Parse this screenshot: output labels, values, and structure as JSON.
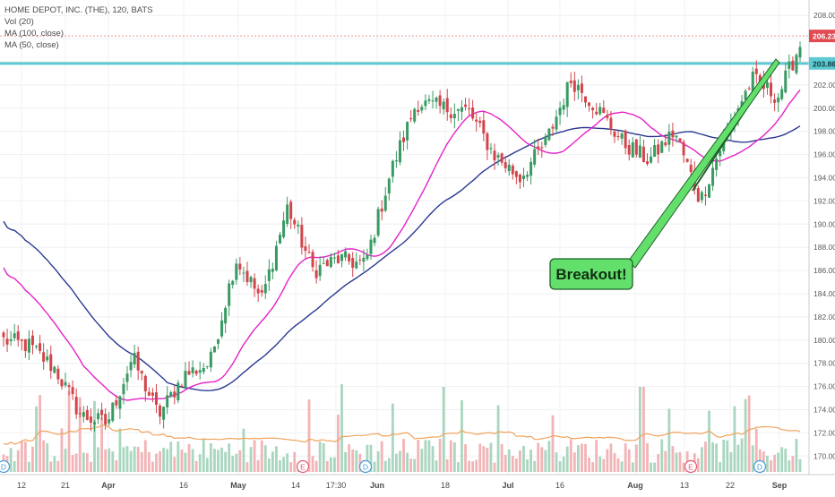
{
  "header": {
    "symbol_line": "HOME DEPOT, INC. (THE), 120, BATS",
    "indicators": [
      "Vol (20)",
      "MA (100, close)",
      "MA (50, close)"
    ]
  },
  "chart_data": {
    "type": "candlestick",
    "title": "HOME DEPOT, INC. (THE), 120, BATS",
    "timeframe": "120",
    "exchange": "BATS",
    "y_axis": {
      "range": [
        169,
        208.6
      ],
      "ticks": [
        "208.00",
        "206.00",
        "204.00",
        "202.00",
        "200.00",
        "198.00",
        "196.00",
        "194.00",
        "192.00",
        "190.00",
        "188.00",
        "186.00",
        "184.00",
        "182.00",
        "180.00",
        "178.00",
        "176.00",
        "174.00",
        "172.00",
        "170.00"
      ]
    },
    "x_axis": {
      "ticks": [
        "12",
        "21",
        "Apr",
        "16",
        "May",
        "14",
        "17:30",
        "Jun",
        "18",
        "Jul",
        "16",
        "Aug",
        "13",
        "22",
        "Sep"
      ]
    },
    "price_labels": {
      "last_price": "206.23",
      "resistance": "203.86"
    },
    "approx_close_path": [
      {
        "date": "Mar 09",
        "close": 180.0
      },
      {
        "date": "Mar 12",
        "close": 179.5
      },
      {
        "date": "Mar 21",
        "close": 177.5
      },
      {
        "date": "Mar 28",
        "close": 173.5
      },
      {
        "date": "Apr 02",
        "close": 172.8
      },
      {
        "date": "Apr 06",
        "close": 178.5
      },
      {
        "date": "Apr 12",
        "close": 173.5
      },
      {
        "date": "Apr 16",
        "close": 177.0
      },
      {
        "date": "Apr 24",
        "close": 178.0
      },
      {
        "date": "Apr 30",
        "close": 187.0
      },
      {
        "date": "May 07",
        "close": 183.5
      },
      {
        "date": "May 14",
        "close": 191.5
      },
      {
        "date": "May 21",
        "close": 186.0
      },
      {
        "date": "May 25",
        "close": 187.0
      },
      {
        "date": "Jun 01",
        "close": 186.5
      },
      {
        "date": "Jun 07",
        "close": 194.5
      },
      {
        "date": "Jun 14",
        "close": 200.5
      },
      {
        "date": "Jun 21",
        "close": 200.0
      },
      {
        "date": "Jun 27",
        "close": 199.8
      },
      {
        "date": "Jul 02",
        "close": 196.0
      },
      {
        "date": "Jul 09",
        "close": 194.0
      },
      {
        "date": "Jul 13",
        "close": 197.0
      },
      {
        "date": "Jul 19",
        "close": 202.5
      },
      {
        "date": "Jul 24",
        "close": 200.0
      },
      {
        "date": "Jul 31",
        "close": 197.0
      },
      {
        "date": "Aug 06",
        "close": 195.5
      },
      {
        "date": "Aug 10",
        "close": 198.0
      },
      {
        "date": "Aug 16",
        "close": 192.0
      },
      {
        "date": "Aug 21",
        "close": 198.0
      },
      {
        "date": "Aug 23",
        "close": 202.5
      },
      {
        "date": "Aug 29",
        "close": 201.0
      },
      {
        "date": "Sep 04",
        "close": 206.2
      }
    ],
    "series": [
      {
        "name": "MA (100, close)",
        "color": "#2b3990"
      },
      {
        "name": "MA (50, close)",
        "color": "#e523c8"
      }
    ],
    "up_color": "#3a9a63",
    "down_color": "#d2454b",
    "events": [
      "D",
      "E",
      "D",
      "E",
      "D"
    ],
    "annotation": {
      "label": "Breakout!",
      "color": "#63e06b"
    }
  }
}
